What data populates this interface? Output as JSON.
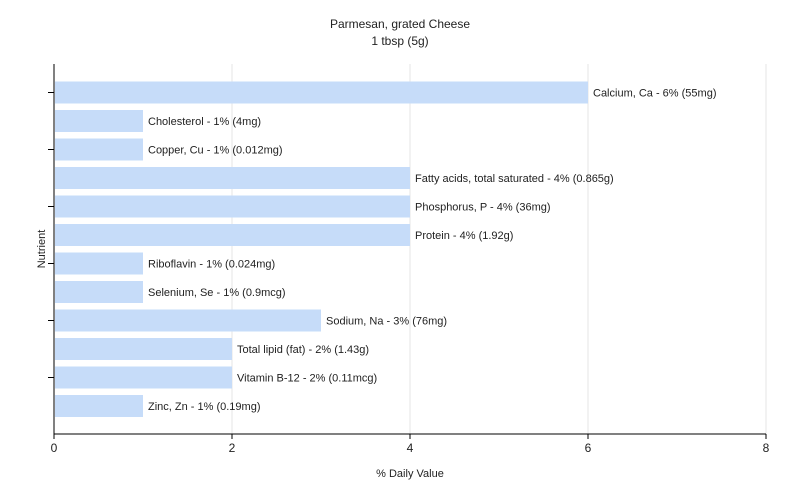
{
  "chart_data": {
    "type": "bar",
    "orientation": "horizontal",
    "title": "Parmesan, grated Cheese",
    "subtitle": "1 tbsp (5g)",
    "xlabel": "% Daily Value",
    "ylabel": "Nutrient",
    "xlim": [
      0,
      8
    ],
    "xticks": [
      0,
      2,
      4,
      6,
      8
    ],
    "grid": true,
    "bar_color": "#c6dcf9",
    "categories": [
      "Calcium, Ca",
      "Cholesterol",
      "Copper, Cu",
      "Fatty acids, total saturated",
      "Phosphorus, P",
      "Protein",
      "Riboflavin",
      "Selenium, Se",
      "Sodium, Na",
      "Total lipid (fat)",
      "Vitamin B-12",
      "Zinc, Zn"
    ],
    "values": [
      6,
      1,
      1,
      4,
      4,
      4,
      1,
      1,
      3,
      2,
      2,
      1
    ],
    "data_labels": [
      "Calcium, Ca - 6% (55mg)",
      "Cholesterol - 1% (4mg)",
      "Copper, Cu - 1% (0.012mg)",
      "Fatty acids, total saturated - 4% (0.865g)",
      "Phosphorus, P - 4% (36mg)",
      "Protein - 4% (1.92g)",
      "Riboflavin - 1% (0.024mg)",
      "Selenium, Se - 1% (0.9mcg)",
      "Sodium, Na - 3% (76mg)",
      "Total lipid (fat) - 2% (1.43g)",
      "Vitamin B-12 - 2% (0.11mcg)",
      "Zinc, Zn - 1% (0.19mg)"
    ]
  }
}
